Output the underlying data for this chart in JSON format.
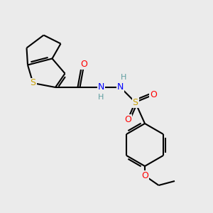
{
  "background_color": "#ebebeb",
  "bond_color": "#000000",
  "atom_colors": {
    "S_thio": "#c8a000",
    "S_sulfonyl": "#c8a000",
    "O": "#ff0000",
    "N": "#0000ff",
    "H": "#5f9ea0",
    "C": "#000000"
  },
  "figsize": [
    3.0,
    3.0
  ],
  "dpi": 100
}
